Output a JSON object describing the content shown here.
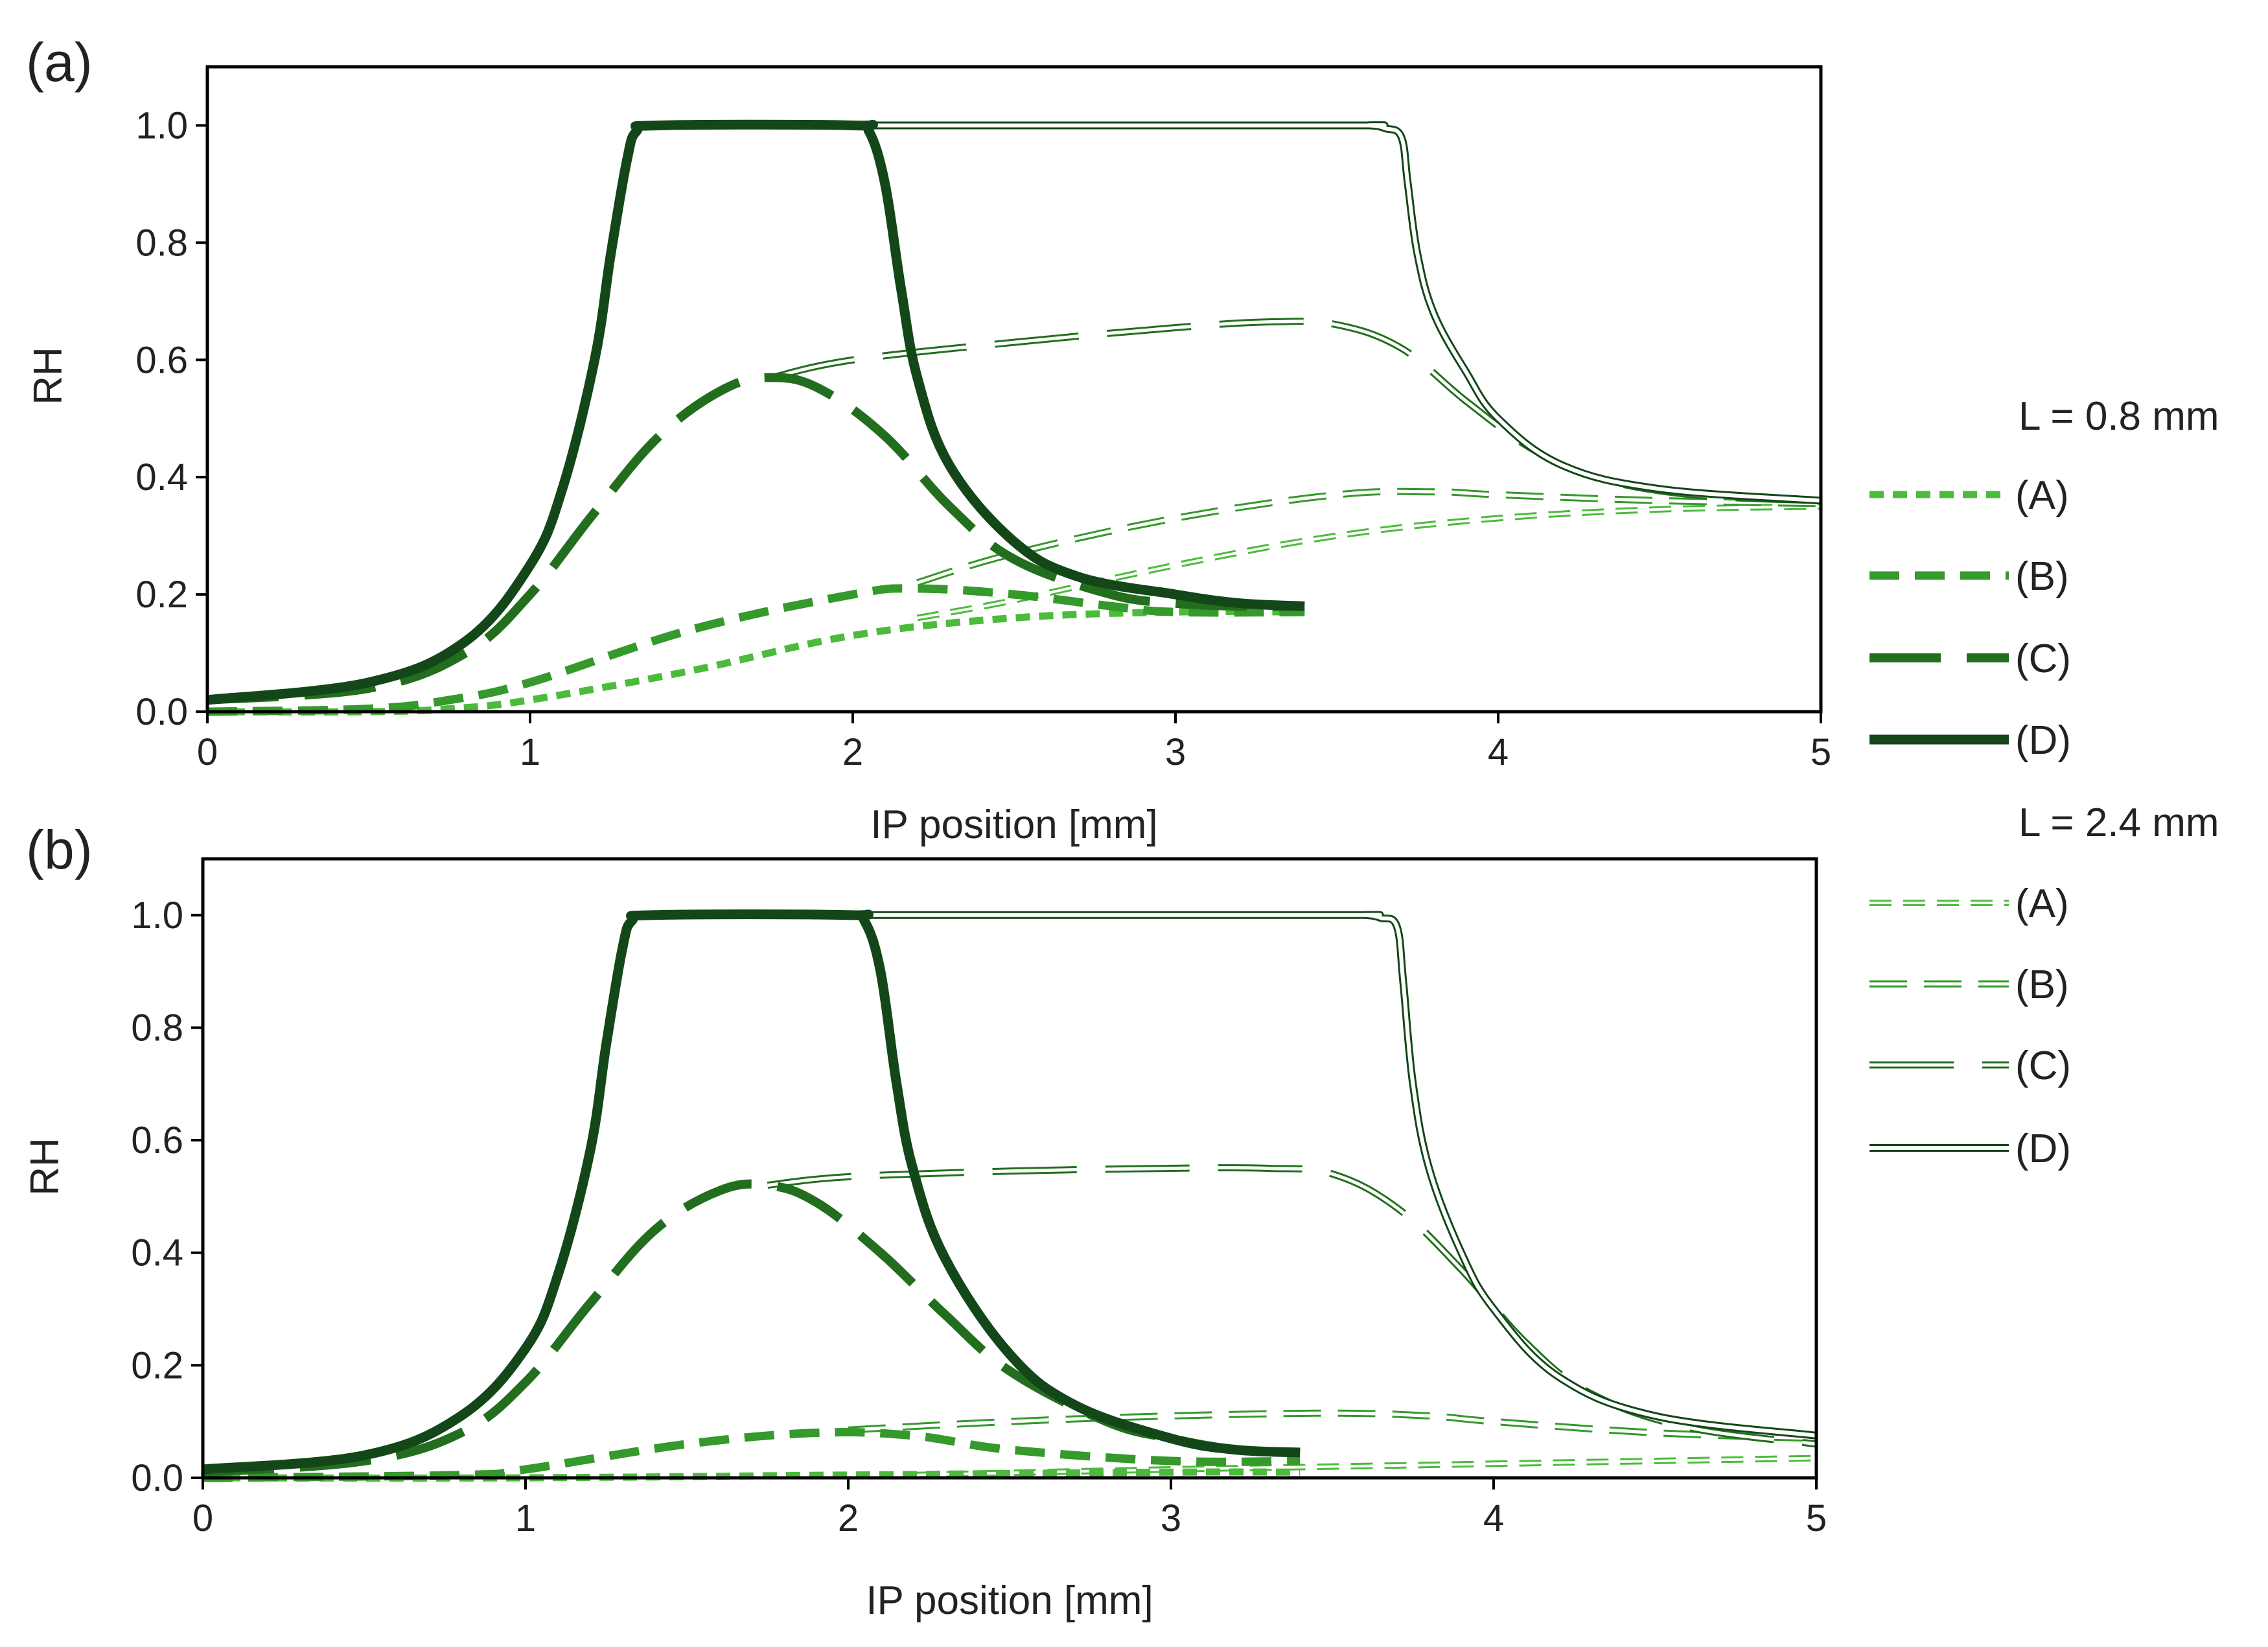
{
  "figure": {
    "legend": {
      "group1_header": "L = 0.8 mm",
      "group2_header": "L = 2.4 mm",
      "entries": [
        "(A)",
        "(B)",
        "(C)",
        "(D)"
      ]
    },
    "colors": {
      "A": "#4cbb3c",
      "B": "#35992b",
      "C": "#236e1e",
      "D": "#13471a"
    }
  },
  "chart_data": [
    {
      "type": "line",
      "panel": "(a)",
      "xlabel": "IP position [mm]",
      "ylabel": "RH",
      "xlim": [
        0,
        5
      ],
      "ylim": [
        0,
        1.1
      ],
      "xticks": [
        "0",
        "1",
        "2",
        "3",
        "4",
        "5"
      ],
      "yticks": [
        "0.0",
        "0.2",
        "0.4",
        "0.6",
        "0.8",
        "1.0"
      ],
      "series": [
        {
          "name": "(A)",
          "group": "L = 0.8 mm",
          "style": "solid-short-dash",
          "x": [
            0,
            0.5,
            0.75,
            1.0,
            1.5,
            2.0,
            2.5,
            3.0,
            3.4
          ],
          "y": [
            0.0,
            0.0,
            0.005,
            0.02,
            0.07,
            0.13,
            0.16,
            0.17,
            0.17
          ]
        },
        {
          "name": "(B)",
          "group": "L = 0.8 mm",
          "style": "solid-medium-dash",
          "x": [
            0,
            0.5,
            0.75,
            1.0,
            1.5,
            2.0,
            2.2,
            2.5,
            2.8,
            3.0,
            3.4
          ],
          "y": [
            0.0,
            0.005,
            0.02,
            0.05,
            0.14,
            0.2,
            0.21,
            0.2,
            0.18,
            0.17,
            0.17
          ]
        },
        {
          "name": "(C)",
          "group": "L = 0.8 mm",
          "style": "solid-long-dash",
          "x": [
            0,
            0.5,
            0.8,
            1.0,
            1.2,
            1.4,
            1.6,
            1.75,
            1.9,
            2.1,
            2.3,
            2.5,
            2.8,
            3.0,
            3.2,
            3.4
          ],
          "y": [
            0.02,
            0.04,
            0.1,
            0.2,
            0.34,
            0.47,
            0.55,
            0.57,
            0.55,
            0.47,
            0.35,
            0.26,
            0.2,
            0.185,
            0.18,
            0.18
          ]
        },
        {
          "name": "(D)",
          "group": "L = 0.8 mm",
          "style": "solid",
          "x": [
            0,
            0.5,
            0.8,
            1.0,
            1.1,
            1.2,
            1.25,
            1.3,
            1.33,
            1.4,
            2.0,
            2.05,
            2.1,
            2.15,
            2.2,
            2.3,
            2.5,
            2.7,
            3.0,
            3.2,
            3.4
          ],
          "y": [
            0.02,
            0.05,
            0.12,
            0.25,
            0.38,
            0.6,
            0.78,
            0.94,
            0.99,
            1.0,
            1.0,
            0.99,
            0.9,
            0.72,
            0.57,
            0.42,
            0.29,
            0.23,
            0.2,
            0.185,
            0.18
          ]
        },
        {
          "name": "(A)",
          "group": "L = 2.4 mm",
          "style": "hollow-short-dash",
          "x": [
            2.2,
            2.5,
            3.0,
            3.5,
            4.0,
            4.5,
            5.0
          ],
          "y": [
            0.16,
            0.19,
            0.25,
            0.3,
            0.33,
            0.345,
            0.35
          ]
        },
        {
          "name": "(B)",
          "group": "L = 2.4 mm",
          "style": "hollow-medium-dash",
          "x": [
            2.2,
            2.5,
            3.0,
            3.5,
            3.8,
            4.0,
            4.5,
            5.0
          ],
          "y": [
            0.22,
            0.27,
            0.33,
            0.37,
            0.375,
            0.37,
            0.36,
            0.355
          ]
        },
        {
          "name": "(C)",
          "group": "L = 2.4 mm",
          "style": "hollow-long-dash",
          "x": [
            1.75,
            2.0,
            2.5,
            3.0,
            3.3,
            3.5,
            3.7,
            3.9,
            4.1,
            4.3,
            4.6,
            5.0
          ],
          "y": [
            0.57,
            0.6,
            0.63,
            0.655,
            0.665,
            0.66,
            0.62,
            0.53,
            0.45,
            0.4,
            0.37,
            0.36
          ]
        },
        {
          "name": "(D)",
          "group": "L = 2.4 mm",
          "style": "hollow-solid",
          "x": [
            2.05,
            3.5,
            3.6,
            3.65,
            3.7,
            3.72,
            3.75,
            3.8,
            3.9,
            4.0,
            4.2,
            4.5,
            5.0
          ],
          "y": [
            1.0,
            1.0,
            1.0,
            0.995,
            0.98,
            0.9,
            0.78,
            0.68,
            0.58,
            0.5,
            0.42,
            0.38,
            0.36
          ]
        }
      ]
    },
    {
      "type": "line",
      "panel": "(b)",
      "xlabel": "IP position [mm]",
      "ylabel": "RH",
      "xlim": [
        0,
        5
      ],
      "ylim": [
        0,
        1.1
      ],
      "xticks": [
        "0",
        "1",
        "2",
        "3",
        "4",
        "5"
      ],
      "yticks": [
        "0.0",
        "0.2",
        "0.4",
        "0.6",
        "0.8",
        "1.0"
      ],
      "series": [
        {
          "name": "(A)",
          "group": "L = 0.8 mm",
          "style": "solid-short-dash",
          "x": [
            0,
            1.0,
            2.0,
            3.0,
            3.4
          ],
          "y": [
            0.0,
            0.0,
            0.005,
            0.01,
            0.01
          ]
        },
        {
          "name": "(B)",
          "group": "L = 0.8 mm",
          "style": "solid-medium-dash",
          "x": [
            0,
            0.8,
            1.0,
            1.5,
            1.9,
            2.2,
            2.5,
            3.0,
            3.4
          ],
          "y": [
            0.0,
            0.005,
            0.015,
            0.06,
            0.08,
            0.075,
            0.05,
            0.03,
            0.03
          ]
        },
        {
          "name": "(C)",
          "group": "L = 0.8 mm",
          "style": "solid-long-dash",
          "x": [
            0,
            0.5,
            0.8,
            1.0,
            1.2,
            1.4,
            1.6,
            1.75,
            1.9,
            2.1,
            2.3,
            2.5,
            2.8,
            3.0,
            3.2,
            3.4
          ],
          "y": [
            0.01,
            0.03,
            0.08,
            0.17,
            0.31,
            0.44,
            0.51,
            0.52,
            0.49,
            0.4,
            0.29,
            0.19,
            0.1,
            0.07,
            0.05,
            0.045
          ]
        },
        {
          "name": "(D)",
          "group": "L = 0.8 mm",
          "style": "solid",
          "x": [
            0,
            0.5,
            0.8,
            1.0,
            1.1,
            1.2,
            1.25,
            1.3,
            1.33,
            1.4,
            2.0,
            2.05,
            2.1,
            2.15,
            2.2,
            2.3,
            2.5,
            2.7,
            3.0,
            3.2,
            3.4
          ],
          "y": [
            0.015,
            0.04,
            0.11,
            0.23,
            0.36,
            0.58,
            0.77,
            0.94,
            0.99,
            1.0,
            1.0,
            0.99,
            0.9,
            0.7,
            0.55,
            0.39,
            0.22,
            0.13,
            0.07,
            0.05,
            0.045
          ]
        },
        {
          "name": "(A)",
          "group": "L = 2.4 mm",
          "style": "hollow-short-dash",
          "x": [
            2.2,
            3.0,
            3.5,
            4.0,
            4.5,
            5.0
          ],
          "y": [
            0.005,
            0.015,
            0.02,
            0.025,
            0.03,
            0.035
          ]
        },
        {
          "name": "(B)",
          "group": "L = 2.4 mm",
          "style": "hollow-medium-dash",
          "x": [
            2.0,
            2.5,
            3.0,
            3.5,
            3.8,
            4.0,
            4.5,
            5.0
          ],
          "y": [
            0.085,
            0.1,
            0.11,
            0.115,
            0.11,
            0.1,
            0.08,
            0.07
          ]
        },
        {
          "name": "(C)",
          "group": "L = 2.4 mm",
          "style": "hollow-long-dash",
          "x": [
            1.75,
            2.0,
            2.5,
            3.0,
            3.3,
            3.5,
            3.7,
            3.9,
            4.1,
            4.3,
            4.6,
            5.0
          ],
          "y": [
            0.52,
            0.535,
            0.545,
            0.55,
            0.55,
            0.54,
            0.48,
            0.37,
            0.24,
            0.15,
            0.09,
            0.06
          ]
        },
        {
          "name": "(D)",
          "group": "L = 2.4 mm",
          "style": "hollow-solid",
          "x": [
            2.05,
            3.5,
            3.6,
            3.65,
            3.7,
            3.72,
            3.75,
            3.8,
            3.9,
            4.0,
            4.2,
            4.5,
            5.0
          ],
          "y": [
            1.0,
            1.0,
            1.0,
            0.995,
            0.98,
            0.88,
            0.7,
            0.55,
            0.4,
            0.3,
            0.18,
            0.11,
            0.075
          ]
        }
      ]
    }
  ]
}
